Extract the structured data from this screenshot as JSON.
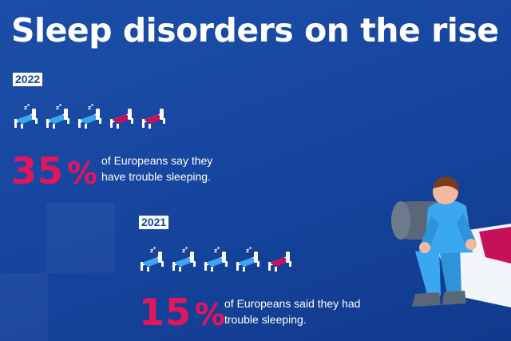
{
  "title": "Sleep disorders on the rise",
  "colors": {
    "background": "#1746a0",
    "accent_pink": "#e3165b",
    "bed_blue": "#3aa8f0",
    "bed_magenta": "#c4115a"
  },
  "stats": [
    {
      "year": "2022",
      "percent_number": "35",
      "percent_sign": "%",
      "caption": "of Europeans say they have trouble sleeping.",
      "beds": [
        "occupied",
        "occupied",
        "occupied",
        "empty",
        "empty"
      ]
    },
    {
      "year": "2021",
      "percent_number": "15",
      "percent_sign": "%",
      "caption": "of Europeans said they had trouble sleeping.",
      "beds": [
        "occupied",
        "occupied",
        "occupied",
        "occupied",
        "empty"
      ]
    }
  ],
  "icons": {
    "occupied_bed": "sleeping-bed-icon",
    "empty_bed": "empty-bed-icon",
    "illustration": "person-sitting-on-bed-illustration"
  }
}
